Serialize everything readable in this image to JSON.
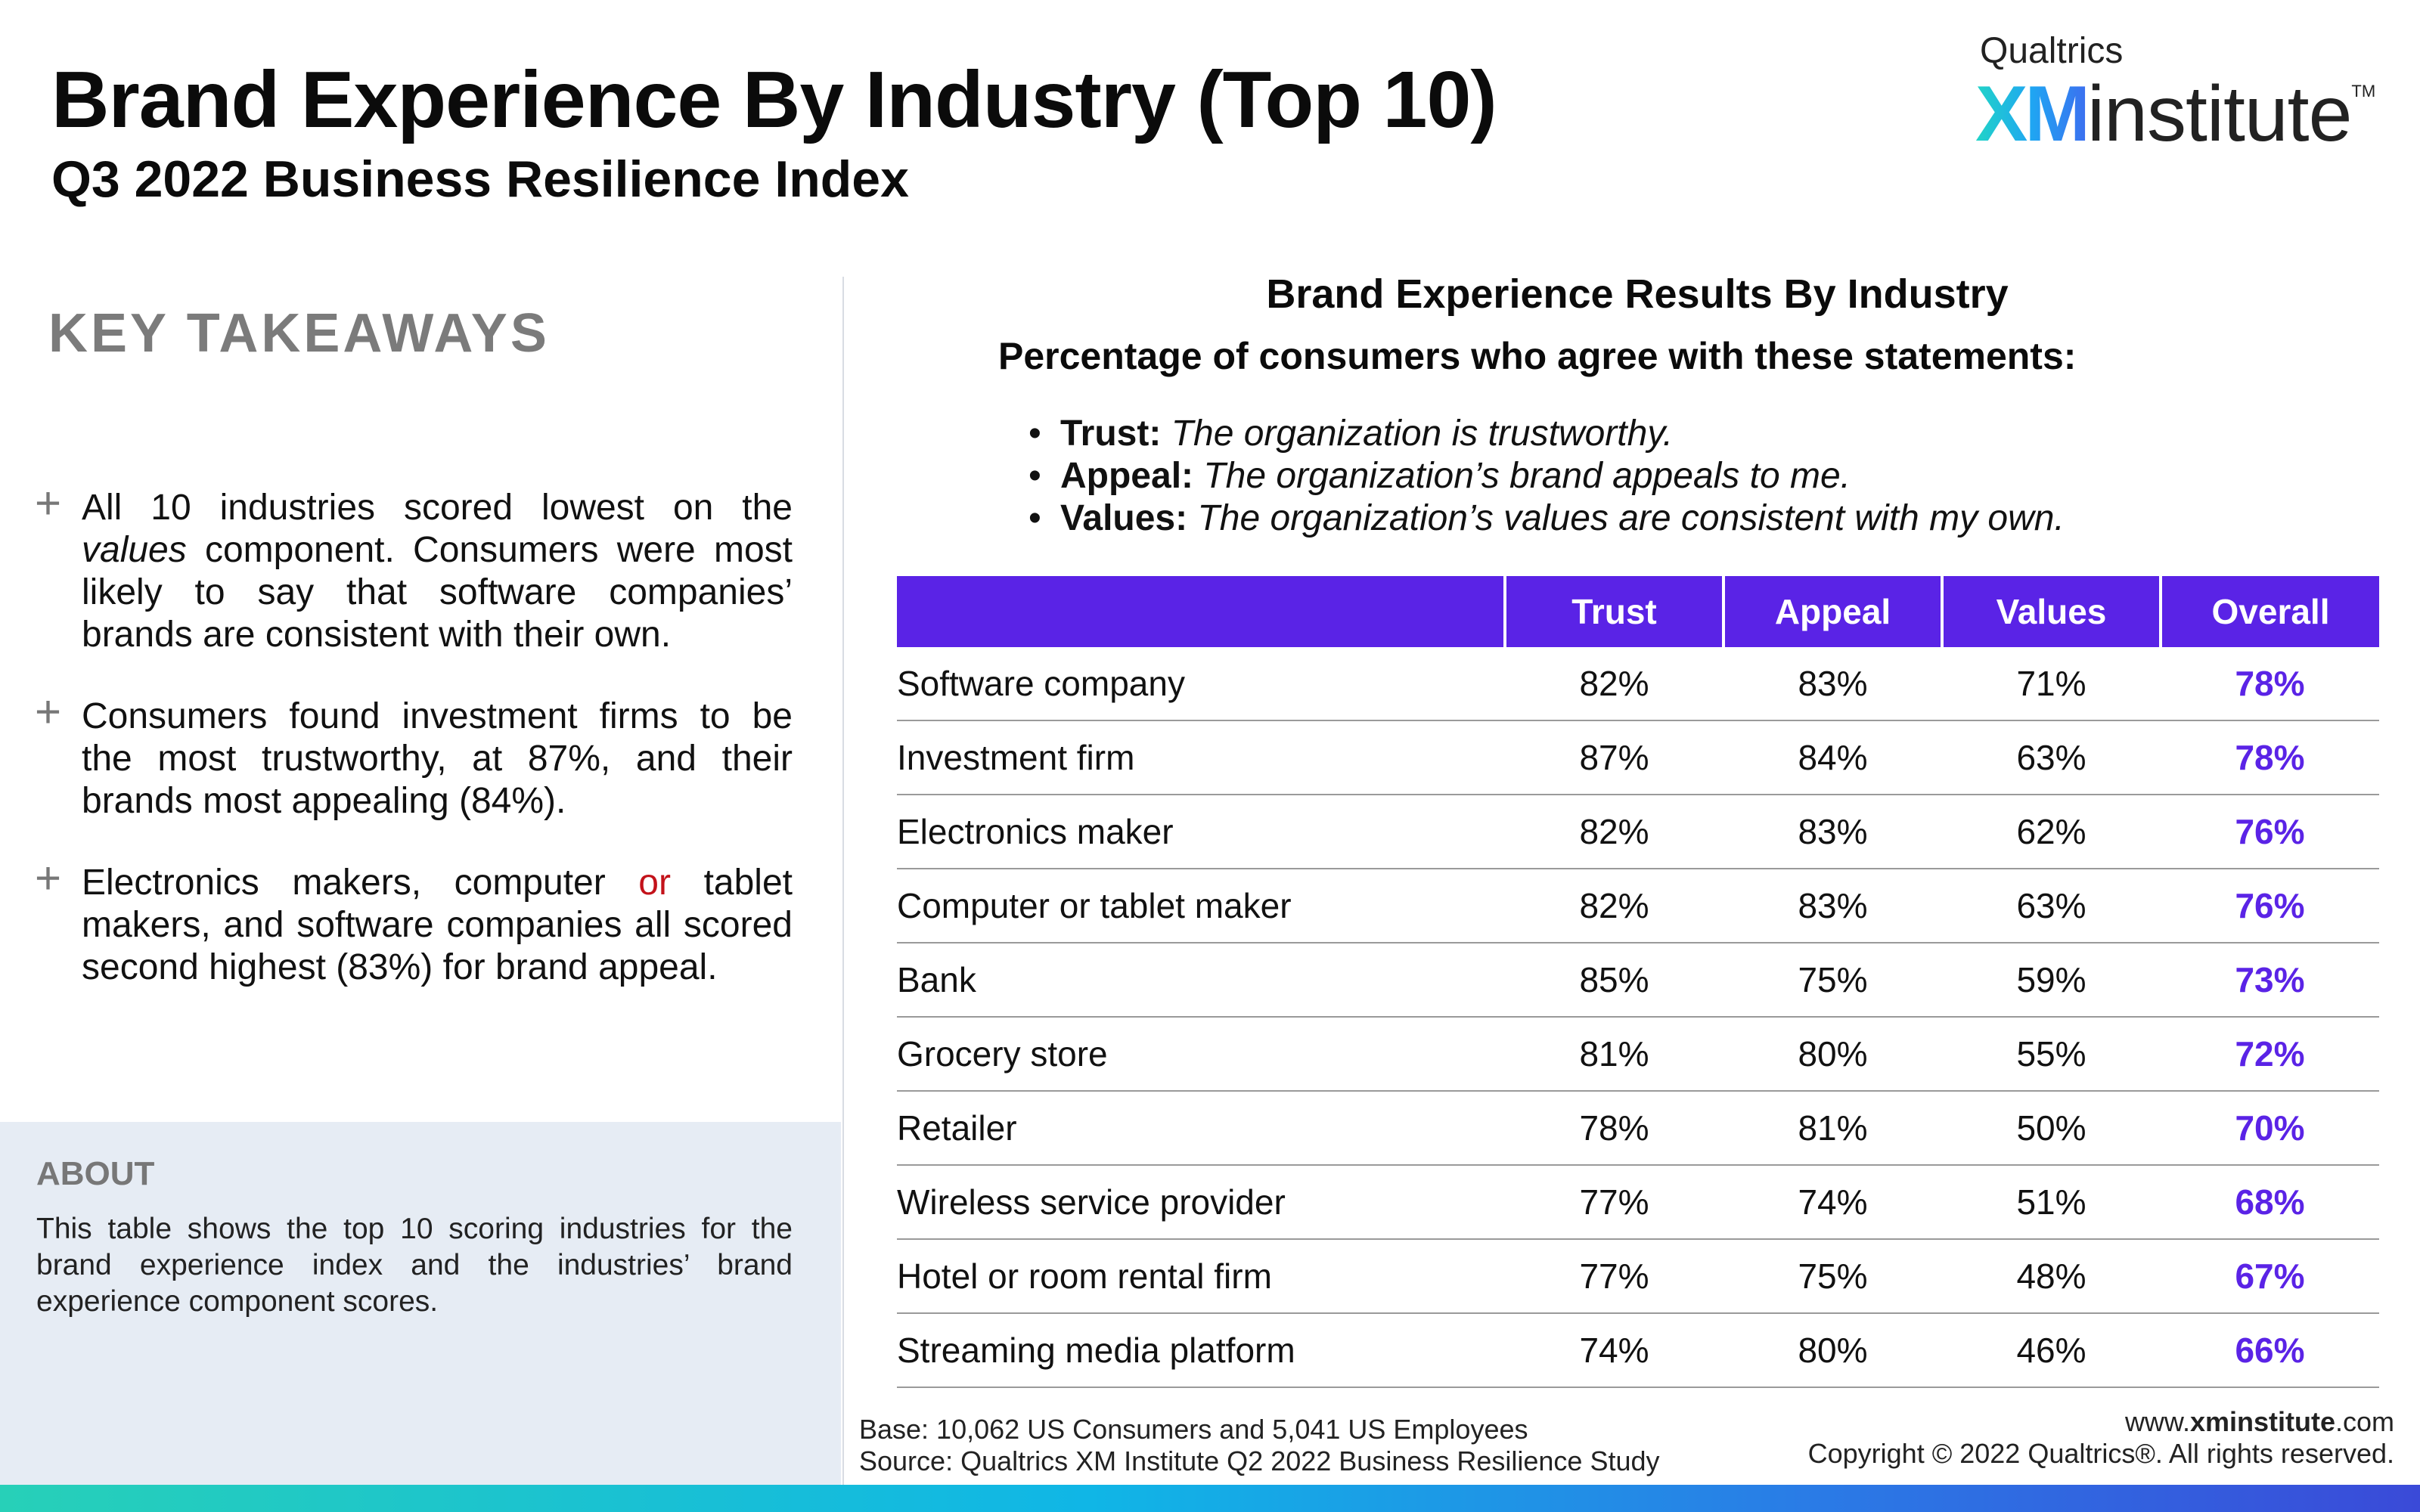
{
  "header": {
    "title": "Brand Experience By Industry (Top 10)",
    "subtitle": "Q3 2022 Business Resilience Index"
  },
  "logo": {
    "top_text": "Qualtrics",
    "xm_text": "XM",
    "institute_text": "institute",
    "tm": "TM",
    "colors": {
      "gradient_start": "#21d4c7",
      "gradient_end": "#3c6ff0"
    }
  },
  "key_takeaways": {
    "heading": "KEY TAKEAWAYS",
    "bullet_icon": "plus-icon",
    "items": [
      {
        "before": "All 10 industries scored lowest on the ",
        "em": "values",
        "after": " component. Consumers were most likely to say that software companies’ brands are consistent with their own."
      },
      {
        "text": "Consumers found investment firms to be the most trustworthy, at 87%, and their brands most appealing (84%)."
      },
      {
        "before": "Electronics makers, computer ",
        "red": "or",
        "after": " tablet makers, and software companies all scored second highest (83%) for brand appeal."
      }
    ]
  },
  "about": {
    "title": "ABOUT",
    "text": "This table shows the top 10 scoring industries for the brand experience index and the industries’ brand experience component scores."
  },
  "chart": {
    "title": "Brand Experience Results By Industry",
    "subtitle": "Percentage of consumers who agree with these statements:",
    "definitions": [
      {
        "term": "Trust:",
        "desc": "The organization is trustworthy."
      },
      {
        "term": "Appeal:",
        "desc": "The organization’s brand appeals to me."
      },
      {
        "term": "Values:",
        "desc": "The organization’s values are consistent with my own."
      }
    ]
  },
  "table": {
    "columns": [
      "",
      "Trust",
      "Appeal",
      "Values",
      "Overall"
    ],
    "rows": [
      {
        "industry": "Software company",
        "trust": "82%",
        "appeal": "83%",
        "values": "71%",
        "overall": "78%"
      },
      {
        "industry": "Investment firm",
        "trust": "87%",
        "appeal": "84%",
        "values": "63%",
        "overall": "78%"
      },
      {
        "industry": "Electronics maker",
        "trust": "82%",
        "appeal": "83%",
        "values": "62%",
        "overall": "76%"
      },
      {
        "industry": "Computer or tablet maker",
        "trust": "82%",
        "appeal": "83%",
        "values": "63%",
        "overall": "76%"
      },
      {
        "industry": "Bank",
        "trust": "85%",
        "appeal": "75%",
        "values": "59%",
        "overall": "73%"
      },
      {
        "industry": "Grocery store",
        "trust": "81%",
        "appeal": "80%",
        "values": "55%",
        "overall": "72%"
      },
      {
        "industry": "Retailer",
        "trust": "78%",
        "appeal": "81%",
        "values": "50%",
        "overall": "70%"
      },
      {
        "industry": "Wireless service provider",
        "trust": "77%",
        "appeal": "74%",
        "values": "51%",
        "overall": "68%"
      },
      {
        "industry": "Hotel or room rental firm",
        "trust": "77%",
        "appeal": "75%",
        "values": "48%",
        "overall": "67%"
      },
      {
        "industry": "Streaming media platform",
        "trust": "74%",
        "appeal": "80%",
        "values": "46%",
        "overall": "66%"
      }
    ],
    "colors": {
      "header_bg": "#5a23e6",
      "overall_text": "#5a23e6"
    }
  },
  "footer": {
    "base": "Base: 10,062 US Consumers and 5,041 US Employees",
    "source": "Source: Qualtrics XM Institute Q2 2022 Business Resilience Study",
    "url_prefix": "www.",
    "url_bold": "xminstitute",
    "url_suffix": ".com",
    "copyright": "Copyright © 2022 Qualtrics®. All rights reserved."
  }
}
